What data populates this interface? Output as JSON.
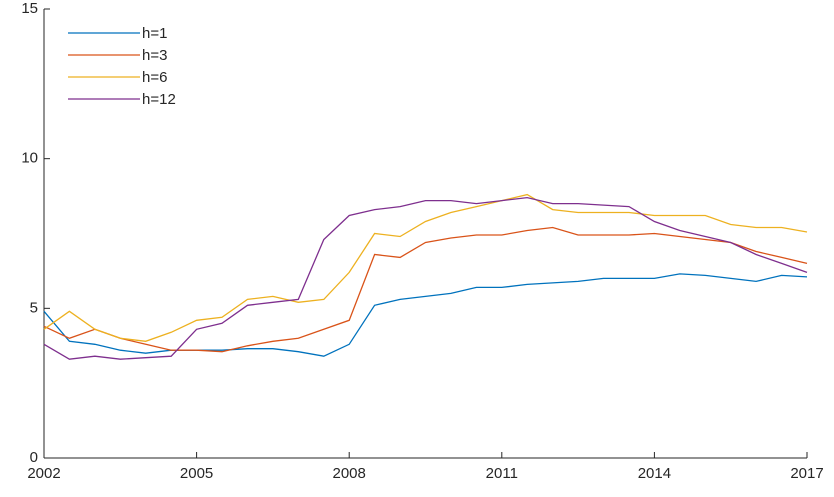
{
  "chart_data": {
    "type": "line",
    "x": [
      2002,
      2002.5,
      2003,
      2003.5,
      2004,
      2004.5,
      2005,
      2005.5,
      2006,
      2006.5,
      2007,
      2007.5,
      2008,
      2008.5,
      2009,
      2009.5,
      2010,
      2010.5,
      2011,
      2011.5,
      2012,
      2012.5,
      2013,
      2013.5,
      2014,
      2014.5,
      2015,
      2015.5,
      2016,
      2016.5,
      2017
    ],
    "series": [
      {
        "name": "h=1",
        "color": "#0072bd",
        "values": [
          4.9,
          3.9,
          3.8,
          3.6,
          3.5,
          3.6,
          3.6,
          3.6,
          3.65,
          3.65,
          3.55,
          3.4,
          3.8,
          5.1,
          5.3,
          5.4,
          5.5,
          5.7,
          5.7,
          5.8,
          5.85,
          5.9,
          6.0,
          6.0,
          6.0,
          6.15,
          6.1,
          6.0,
          5.9,
          6.1,
          6.05
        ]
      },
      {
        "name": "h=3",
        "color": "#d95319",
        "values": [
          4.4,
          4.0,
          4.3,
          4.0,
          3.8,
          3.6,
          3.6,
          3.55,
          3.75,
          3.9,
          4.0,
          4.3,
          4.6,
          6.8,
          6.7,
          7.2,
          7.35,
          7.45,
          7.45,
          7.6,
          7.7,
          7.45,
          7.45,
          7.45,
          7.5,
          7.4,
          7.3,
          7.2,
          6.9,
          6.7,
          6.5
        ]
      },
      {
        "name": "h=6",
        "color": "#edb120",
        "values": [
          4.3,
          4.9,
          4.3,
          4.0,
          3.9,
          4.2,
          4.6,
          4.7,
          5.3,
          5.4,
          5.2,
          5.3,
          6.2,
          7.5,
          7.4,
          7.9,
          8.2,
          8.4,
          8.6,
          8.8,
          8.3,
          8.2,
          8.2,
          8.2,
          8.1,
          8.1,
          8.1,
          7.8,
          7.7,
          7.7,
          7.55
        ]
      },
      {
        "name": "h=12",
        "color": "#7e2f8e",
        "values": [
          3.8,
          3.3,
          3.4,
          3.3,
          3.35,
          3.4,
          4.3,
          4.5,
          5.1,
          5.2,
          5.3,
          7.3,
          8.1,
          8.3,
          8.4,
          8.6,
          8.6,
          8.5,
          8.6,
          8.7,
          8.5,
          8.5,
          8.45,
          8.4,
          7.9,
          7.6,
          7.4,
          7.2,
          6.8,
          6.5,
          6.2
        ]
      }
    ],
    "xlim": [
      2002,
      2017
    ],
    "xticks": [
      2002,
      2005,
      2008,
      2011,
      2014,
      2017
    ],
    "ylim": [
      0,
      15
    ],
    "yticks": [
      0,
      5,
      10,
      15
    ],
    "legend": "upper left"
  }
}
